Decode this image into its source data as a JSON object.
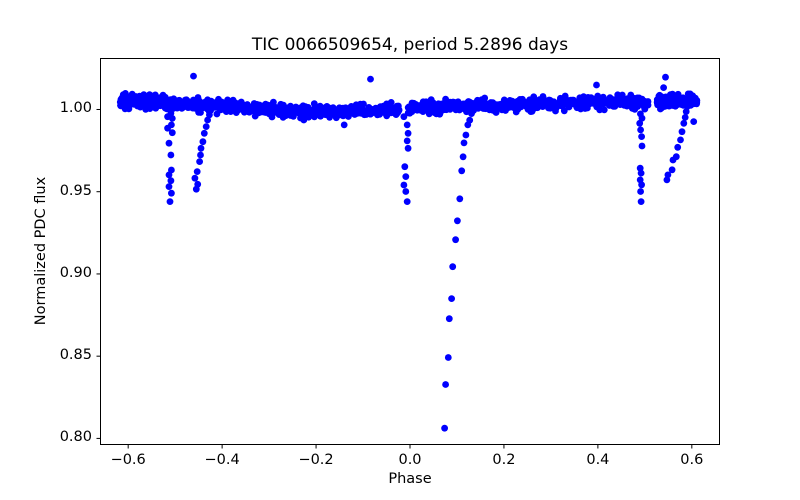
{
  "figure": {
    "background": "#ffffff",
    "axes_edge_color": "#000000"
  },
  "chart_data": {
    "type": "scatter",
    "title": "TIC 0066509654, period 5.2896 days",
    "xlabel": "Phase",
    "ylabel": "Normalized PDC flux",
    "xlim": [
      -0.66,
      0.66
    ],
    "ylim": [
      0.7966,
      1.0313
    ],
    "grid": false,
    "legend": "none",
    "marker": {
      "color": "#0000ff",
      "radius": 3.4
    },
    "xticks": {
      "values": [
        -0.6,
        -0.4,
        -0.2,
        0.0,
        0.2,
        0.4,
        0.6
      ],
      "labels": [
        "−0.6",
        "−0.4",
        "−0.2",
        "0.0",
        "0.2",
        "0.4",
        "0.6"
      ]
    },
    "yticks": {
      "values": [
        1.0,
        0.95,
        0.9,
        0.85,
        0.8
      ],
      "labels": [
        "1.00",
        "0.95",
        "0.90",
        "0.85",
        "0.80"
      ]
    },
    "band": {
      "description": "dense out-of-eclipse scatter band near flux 1.0",
      "phase_range": [
        -0.617,
        0.611
      ],
      "n_points": 1400,
      "extra_segments": [
        {
          "range": [
            -0.617,
            -0.5
          ],
          "n": 200
        },
        {
          "range": [
            0.53,
            0.611
          ],
          "n": 80
        }
      ],
      "sigma_main": 0.0015,
      "sigma_wide": 0.0032,
      "wide_fraction": 0.15,
      "max_dev": 0.0045,
      "seed": 42,
      "gaps": [
        [
          -0.023,
          -0.005
        ],
        [
          0.507,
          0.526
        ]
      ],
      "mean_curve": [
        [
          -0.617,
          1.005
        ],
        [
          -0.5,
          1.004
        ],
        [
          -0.4,
          1.0015
        ],
        [
          -0.3,
          1.0
        ],
        [
          -0.2,
          0.999
        ],
        [
          -0.12,
          0.9985
        ],
        [
          -0.05,
          0.9995
        ],
        [
          0.0,
          1.001
        ],
        [
          0.1,
          1.002
        ],
        [
          0.2,
          1.0028
        ],
        [
          0.3,
          1.0035
        ],
        [
          0.4,
          1.0042
        ],
        [
          0.5,
          1.0047
        ],
        [
          0.611,
          1.005
        ]
      ]
    },
    "features": {
      "primary_eclipse_trail": [
        [
          0.131,
          0.9975
        ],
        [
          0.127,
          0.9935
        ],
        [
          0.123,
          0.9906
        ],
        [
          0.119,
          0.9845
        ],
        [
          0.115,
          0.9797
        ],
        [
          0.113,
          0.9712
        ],
        [
          0.11,
          0.9627
        ],
        [
          0.106,
          0.9457
        ],
        [
          0.101,
          0.9323
        ],
        [
          0.097,
          0.9208
        ],
        [
          0.091,
          0.9044
        ],
        [
          0.0885,
          0.885
        ],
        [
          0.0836,
          0.8728
        ],
        [
          0.0815,
          0.8492
        ],
        [
          0.0758,
          0.8328
        ],
        [
          0.0736,
          0.8062
        ]
      ],
      "dip_phase_zero": [
        [
          -0.013,
          0.9956
        ],
        [
          -0.006,
          0.9906
        ],
        [
          -0.004,
          0.9855
        ],
        [
          -0.006,
          0.9809
        ],
        [
          -0.004,
          0.9764
        ],
        [
          -0.011,
          0.9652
        ],
        [
          -0.009,
          0.9592
        ],
        [
          -0.013,
          0.9541
        ],
        [
          -0.009,
          0.9501
        ],
        [
          -0.006,
          0.944
        ]
      ],
      "dip_phase_minus_05": [
        [
          -0.509,
          0.9977
        ],
        [
          -0.516,
          0.9956
        ],
        [
          -0.506,
          0.9946
        ],
        [
          -0.508,
          0.9906
        ],
        [
          -0.516,
          0.9886
        ],
        [
          -0.506,
          0.9859
        ],
        [
          -0.513,
          0.9795
        ],
        [
          -0.509,
          0.9723
        ],
        [
          -0.508,
          0.9632
        ],
        [
          -0.513,
          0.9602
        ],
        [
          -0.509,
          0.9567
        ],
        [
          -0.513,
          0.9531
        ],
        [
          -0.508,
          0.9491
        ],
        [
          -0.511,
          0.944
        ]
      ],
      "dip_phase_plus_05": [
        [
          0.4906,
          0.9973
        ],
        [
          0.494,
          0.9947
        ],
        [
          0.489,
          0.9916
        ],
        [
          0.491,
          0.9876
        ],
        [
          0.493,
          0.9835
        ],
        [
          0.494,
          0.9778
        ],
        [
          0.49,
          0.9643
        ],
        [
          0.492,
          0.9613
        ],
        [
          0.49,
          0.9572
        ],
        [
          0.493,
          0.9542
        ],
        [
          0.491,
          0.9501
        ],
        [
          0.492,
          0.944
        ]
      ],
      "diagonal_streak_left": [
        [
          -0.424,
          1.0007
        ],
        [
          -0.427,
          0.9967
        ],
        [
          -0.431,
          0.9936
        ],
        [
          -0.434,
          0.9896
        ],
        [
          -0.438,
          0.9855
        ],
        [
          -0.441,
          0.9804
        ],
        [
          -0.445,
          0.9764
        ],
        [
          -0.446,
          0.9723
        ],
        [
          -0.448,
          0.9683
        ],
        [
          -0.453,
          0.9622
        ],
        [
          -0.458,
          0.9582
        ],
        [
          -0.452,
          0.9545
        ],
        [
          -0.455,
          0.9515
        ]
      ],
      "diagonal_streak_right": [
        [
          0.59,
          1.0017
        ],
        [
          0.588,
          0.9987
        ],
        [
          0.586,
          0.9952
        ],
        [
          0.583,
          0.9916
        ],
        [
          0.579,
          0.9865
        ],
        [
          0.576,
          0.9815
        ],
        [
          0.57,
          0.977
        ],
        [
          0.567,
          0.9713
        ],
        [
          0.56,
          0.9693
        ],
        [
          0.558,
          0.9633
        ],
        [
          0.549,
          0.9602
        ],
        [
          0.547,
          0.9572
        ]
      ],
      "outliers_above": [
        [
          -0.606,
          1.0098
        ],
        [
          -0.461,
          1.0203
        ],
        [
          -0.084,
          1.0185
        ],
        [
          0.397,
          1.0149
        ],
        [
          0.54,
          1.0133
        ],
        [
          0.544,
          1.0196
        ]
      ],
      "stragglers_below": [
        [
          -0.226,
          0.9936
        ],
        [
          -0.14,
          0.9906
        ],
        [
          0.604,
          0.9926
        ]
      ]
    }
  }
}
